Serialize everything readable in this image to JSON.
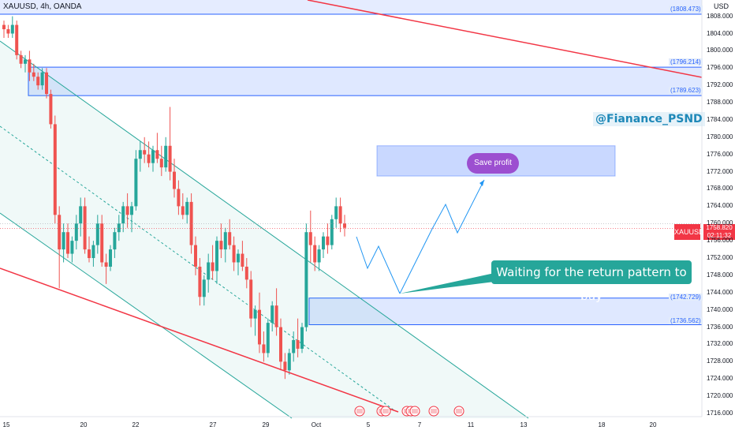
{
  "header": {
    "symbol": "XAUUSD, 4h, OANDA",
    "currency": "USD"
  },
  "annotations": {
    "handle": "@Fianance_PSND",
    "callout": "Waiting for the return pattern to buy",
    "save_profit": "Save profit"
  },
  "current_price": {
    "symbol": "XAUUSD",
    "price": "1758.820",
    "countdown": "02:11:32",
    "value": 1758.82
  },
  "levels": [
    {
      "label": "(1808.473)",
      "value": 1808.473
    },
    {
      "label": "(1796.214)",
      "value": 1796.214
    },
    {
      "label": "(1789.623)",
      "value": 1789.623
    },
    {
      "label": "(1742.729)",
      "value": 1742.729
    },
    {
      "label": "(1736.562)",
      "value": 1736.562
    }
  ],
  "y_axis": {
    "ticks": [
      "1808.000",
      "1804.000",
      "1800.000",
      "1796.000",
      "1792.000",
      "1788.000",
      "1784.000",
      "1780.000",
      "1776.000",
      "1772.000",
      "1768.000",
      "1764.000",
      "1760.000",
      "1756.000",
      "1752.000",
      "1748.000",
      "1744.000",
      "1740.000",
      "1736.000",
      "1732.000",
      "1728.000",
      "1724.000",
      "1720.000",
      "1716.000"
    ]
  },
  "x_axis": {
    "ticks": [
      "15",
      "20",
      "22",
      "27",
      "29",
      "Oct",
      "5",
      "7",
      "11",
      "13",
      "18",
      "20"
    ]
  },
  "colors": {
    "up": "#26a69a",
    "down": "#ef5350",
    "zone": "#2962ff",
    "trend": "#f23645",
    "channel": "#26a69a"
  },
  "chart_data": {
    "type": "candlestick",
    "ylim": [
      1714,
      1810
    ],
    "candles": [
      [
        1806,
        1807,
        1803,
        1805
      ],
      [
        1805,
        1806,
        1803,
        1804
      ],
      [
        1804,
        1808,
        1803,
        1806
      ],
      [
        1806,
        1807,
        1798,
        1799
      ],
      [
        1799,
        1800,
        1796,
        1797
      ],
      [
        1797,
        1799,
        1795,
        1798
      ],
      [
        1798,
        1800,
        1793,
        1795
      ],
      [
        1795,
        1797,
        1793,
        1794
      ],
      [
        1794,
        1795,
        1791,
        1792
      ],
      [
        1792,
        1796,
        1791,
        1795
      ],
      [
        1795,
        1796,
        1789,
        1790
      ],
      [
        1790,
        1791,
        1782,
        1783
      ],
      [
        1783,
        1785,
        1760,
        1762
      ],
      [
        1762,
        1764,
        1745,
        1754
      ],
      [
        1754,
        1760,
        1751,
        1758
      ],
      [
        1758,
        1760,
        1752,
        1753
      ],
      [
        1753,
        1757,
        1751,
        1756
      ],
      [
        1756,
        1762,
        1754,
        1760
      ],
      [
        1760,
        1766,
        1757,
        1764
      ],
      [
        1764,
        1766,
        1753,
        1754
      ],
      [
        1754,
        1757,
        1751,
        1752
      ],
      [
        1752,
        1756,
        1750,
        1755
      ],
      [
        1755,
        1762,
        1753,
        1760
      ],
      [
        1760,
        1762,
        1750,
        1751
      ],
      [
        1751,
        1753,
        1746,
        1750
      ],
      [
        1750,
        1755,
        1749,
        1754
      ],
      [
        1754,
        1759,
        1752,
        1758
      ],
      [
        1758,
        1762,
        1756,
        1760
      ],
      [
        1760,
        1765,
        1758,
        1764
      ],
      [
        1764,
        1767,
        1759,
        1762
      ],
      [
        1762,
        1765,
        1758,
        1764
      ],
      [
        1764,
        1777,
        1763,
        1775
      ],
      [
        1775,
        1779,
        1772,
        1777
      ],
      [
        1777,
        1780,
        1774,
        1776
      ],
      [
        1776,
        1779,
        1773,
        1774
      ],
      [
        1774,
        1778,
        1772,
        1777
      ],
      [
        1777,
        1781,
        1774,
        1775
      ],
      [
        1775,
        1778,
        1771,
        1773
      ],
      [
        1773,
        1780,
        1772,
        1778
      ],
      [
        1778,
        1787,
        1770,
        1772
      ],
      [
        1772,
        1775,
        1766,
        1768
      ],
      [
        1768,
        1770,
        1762,
        1764
      ],
      [
        1764,
        1767,
        1761,
        1762
      ],
      [
        1762,
        1766,
        1760,
        1765
      ],
      [
        1765,
        1767,
        1753,
        1755
      ],
      [
        1755,
        1757,
        1748,
        1750
      ],
      [
        1750,
        1752,
        1741,
        1743
      ],
      [
        1743,
        1748,
        1741,
        1747
      ],
      [
        1747,
        1753,
        1744,
        1751
      ],
      [
        1751,
        1755,
        1747,
        1749
      ],
      [
        1749,
        1757,
        1746,
        1756
      ],
      [
        1756,
        1760,
        1752,
        1754
      ],
      [
        1754,
        1759,
        1751,
        1758
      ],
      [
        1758,
        1761,
        1754,
        1755
      ],
      [
        1755,
        1757,
        1749,
        1751
      ],
      [
        1751,
        1754,
        1748,
        1753
      ],
      [
        1753,
        1756,
        1749,
        1750
      ],
      [
        1750,
        1752,
        1745,
        1747
      ],
      [
        1747,
        1749,
        1736,
        1738
      ],
      [
        1738,
        1741,
        1734,
        1740
      ],
      [
        1740,
        1744,
        1730,
        1732
      ],
      [
        1732,
        1735,
        1728,
        1730
      ],
      [
        1730,
        1738,
        1729,
        1737
      ],
      [
        1737,
        1742,
        1735,
        1741
      ],
      [
        1741,
        1745,
        1734,
        1736
      ],
      [
        1736,
        1738,
        1726,
        1728
      ],
      [
        1728,
        1730,
        1724,
        1726
      ],
      [
        1726,
        1731,
        1725,
        1730
      ],
      [
        1730,
        1735,
        1728,
        1733
      ],
      [
        1733,
        1738,
        1729,
        1731
      ],
      [
        1731,
        1737,
        1730,
        1736
      ],
      [
        1736,
        1760,
        1735,
        1758
      ],
      [
        1758,
        1763,
        1751,
        1755
      ],
      [
        1755,
        1757,
        1749,
        1751
      ],
      [
        1751,
        1755,
        1749,
        1754
      ],
      [
        1754,
        1758,
        1752,
        1757
      ],
      [
        1757,
        1760,
        1753,
        1755
      ],
      [
        1755,
        1762,
        1754,
        1761
      ],
      [
        1761,
        1766,
        1759,
        1764
      ],
      [
        1764,
        1766,
        1758,
        1760
      ],
      [
        1760,
        1762,
        1757,
        1759
      ]
    ]
  }
}
